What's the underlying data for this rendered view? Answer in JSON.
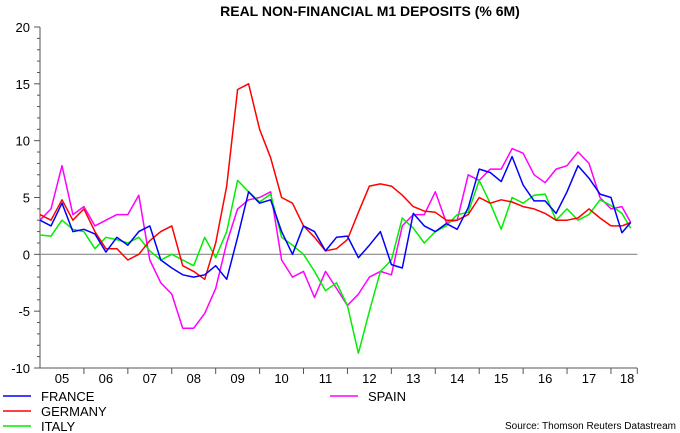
{
  "chart_data": {
    "type": "line",
    "title": "REAL NON-FINANCIAL M1 DEPOSITS (% 6M)",
    "source": "Source: Thomson Reuters Datastream",
    "ylim": [
      -10,
      20
    ],
    "yticks": [
      -10,
      -5,
      0,
      5,
      10,
      15,
      20
    ],
    "xlim": [
      2005.0,
      2018.6
    ],
    "xtick_labels": [
      "05",
      "06",
      "07",
      "08",
      "09",
      "10",
      "11",
      "12",
      "13",
      "14",
      "15",
      "16",
      "17",
      "18"
    ],
    "grid": false,
    "zero_line": true,
    "legend_placement": "bottom",
    "x": [
      2005.0,
      2005.25,
      2005.5,
      2005.75,
      2006.0,
      2006.25,
      2006.5,
      2006.75,
      2007.0,
      2007.25,
      2007.5,
      2007.75,
      2008.0,
      2008.25,
      2008.5,
      2008.75,
      2009.0,
      2009.25,
      2009.5,
      2009.75,
      2010.0,
      2010.25,
      2010.5,
      2010.75,
      2011.0,
      2011.25,
      2011.5,
      2011.75,
      2012.0,
      2012.25,
      2012.5,
      2012.75,
      2013.0,
      2013.25,
      2013.5,
      2013.75,
      2014.0,
      2014.25,
      2014.5,
      2014.75,
      2015.0,
      2015.25,
      2015.5,
      2015.75,
      2016.0,
      2016.25,
      2016.5,
      2016.75,
      2017.0,
      2017.25,
      2017.5,
      2017.75,
      2018.0,
      2018.25,
      2018.45
    ],
    "series": [
      {
        "name": "FRANCE",
        "color": "#0000ff",
        "values": [
          3.0,
          2.5,
          4.5,
          2.0,
          2.2,
          1.8,
          0.2,
          1.5,
          0.8,
          2.0,
          2.5,
          -0.5,
          -1.2,
          -1.8,
          -2.0,
          -1.8,
          -1.0,
          -2.2,
          1.5,
          5.5,
          4.5,
          4.8,
          2.0,
          0.0,
          2.5,
          2.0,
          0.3,
          1.5,
          1.6,
          -0.3,
          0.8,
          2.0,
          -0.9,
          -1.2,
          3.6,
          2.5,
          2.0,
          2.7,
          2.2,
          4.1,
          7.5,
          7.2,
          6.4,
          8.6,
          6.1,
          4.7,
          4.7,
          3.6,
          5.5,
          7.8,
          6.7,
          5.3,
          5.0,
          1.9,
          2.8
        ]
      },
      {
        "name": "GERMANY",
        "color": "#ff0000",
        "values": [
          3.5,
          3.0,
          4.8,
          3.0,
          4.0,
          2.0,
          0.5,
          0.5,
          -0.5,
          0.0,
          1.2,
          2.0,
          2.5,
          -1.0,
          -1.5,
          -2.2,
          1.0,
          6.0,
          14.5,
          15.0,
          11.0,
          8.5,
          5.0,
          4.5,
          2.5,
          1.5,
          0.3,
          0.5,
          1.3,
          3.7,
          6.0,
          6.2,
          6.0,
          5.2,
          4.2,
          3.8,
          3.7,
          3.0,
          3.0,
          3.5,
          5.0,
          4.5,
          4.8,
          4.6,
          4.2,
          4.0,
          3.6,
          3.0,
          3.0,
          3.2,
          4.0,
          3.2,
          2.5,
          2.5,
          2.8
        ]
      },
      {
        "name": "ITALY",
        "color": "#00ee00",
        "values": [
          1.7,
          1.6,
          3.0,
          2.2,
          2.0,
          0.5,
          1.5,
          1.3,
          1.0,
          1.5,
          0.3,
          -0.5,
          0.0,
          -0.5,
          -1.0,
          1.5,
          -0.3,
          2.0,
          6.5,
          5.5,
          4.6,
          5.3,
          1.5,
          0.8,
          0.0,
          -1.5,
          -3.2,
          -2.5,
          -4.5,
          -8.7,
          -5.0,
          -1.5,
          -0.5,
          3.2,
          2.3,
          1.0,
          2.0,
          2.5,
          3.5,
          3.7,
          6.5,
          4.5,
          2.2,
          5.0,
          4.5,
          5.2,
          5.3,
          3.0,
          4.0,
          3.0,
          3.5,
          4.8,
          4.3,
          3.6,
          2.3
        ]
      },
      {
        "name": "SPAIN",
        "color": "#ff00ff",
        "values": [
          3.0,
          4.0,
          7.8,
          3.5,
          4.2,
          2.5,
          3.0,
          3.5,
          3.5,
          5.2,
          -0.5,
          -2.5,
          -3.5,
          -6.5,
          -6.5,
          -5.2,
          -3.0,
          1.0,
          4.0,
          4.8,
          5.0,
          5.5,
          -0.5,
          -2.0,
          -1.5,
          -3.8,
          -1.5,
          -3.0,
          -4.5,
          -3.5,
          -2.0,
          -1.5,
          -1.8,
          2.5,
          3.5,
          3.5,
          5.5,
          2.8,
          3.0,
          7.0,
          6.5,
          7.5,
          7.5,
          9.3,
          8.9,
          7.0,
          6.3,
          7.5,
          7.8,
          9.0,
          8.0,
          5.0,
          4.0,
          4.2,
          2.8
        ]
      }
    ]
  }
}
